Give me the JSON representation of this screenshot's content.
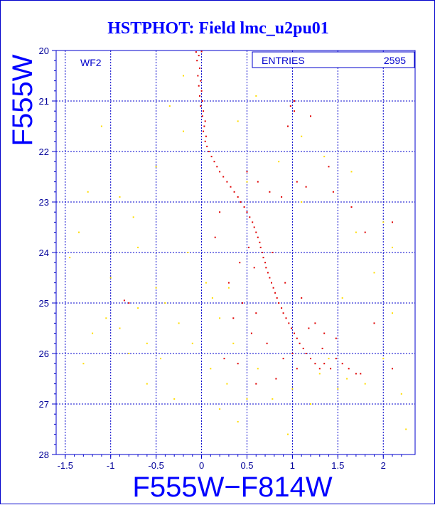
{
  "colors": {
    "frame": "#0000cc",
    "grid": "#0000cc",
    "text": "#0000ff",
    "series_red": "#e00000",
    "series_yellow": "#ffdd00"
  },
  "chart_data": {
    "type": "scatter",
    "title": "HSTPHOT: Field lmc_u2pu01",
    "xlabel": "F555W−F814W",
    "ylabel": "F555W",
    "panel_label": "WF2",
    "stats_box": {
      "label": "ENTRIES",
      "value": "2595"
    },
    "xlim": [
      -1.6,
      2.35
    ],
    "ylim": [
      28,
      20
    ],
    "y_inverted": true,
    "x_ticks": [
      -1.5,
      -1,
      -0.5,
      0,
      0.5,
      1,
      1.5,
      2
    ],
    "x_tick_labels": [
      "-1.5",
      "-1",
      "-0.5",
      "0",
      "0.5",
      "1",
      "1.5",
      "2"
    ],
    "y_ticks": [
      20,
      21,
      22,
      23,
      24,
      25,
      26,
      27,
      28
    ],
    "y_tick_labels": [
      "20",
      "21",
      "22",
      "23",
      "24",
      "25",
      "26",
      "27",
      "28"
    ],
    "grid": true,
    "series": [
      {
        "color": "#e00000",
        "points": [
          [
            -0.06,
            20.03
          ],
          [
            0.0,
            20.02
          ],
          [
            -0.03,
            20.1
          ],
          [
            -0.05,
            20.2
          ],
          [
            -0.02,
            20.35
          ],
          [
            -0.04,
            20.5
          ],
          [
            -0.01,
            20.6
          ],
          [
            -0.03,
            20.7
          ],
          [
            0.0,
            20.8
          ],
          [
            -0.02,
            20.9
          ],
          [
            0.01,
            21.0
          ],
          [
            -0.01,
            21.1
          ],
          [
            0.02,
            21.2
          ],
          [
            0.01,
            21.3
          ],
          [
            0.04,
            21.4
          ],
          [
            0.03,
            21.5
          ],
          [
            0.02,
            21.6
          ],
          [
            0.05,
            21.7
          ],
          [
            0.04,
            21.8
          ],
          [
            0.06,
            21.9
          ],
          [
            0.08,
            22.0
          ],
          [
            0.11,
            22.1
          ],
          [
            0.14,
            22.2
          ],
          [
            0.17,
            22.3
          ],
          [
            0.2,
            22.4
          ],
          [
            0.24,
            22.5
          ],
          [
            0.28,
            22.6
          ],
          [
            0.32,
            22.7
          ],
          [
            0.36,
            22.8
          ],
          [
            0.4,
            22.9
          ],
          [
            0.43,
            23.0
          ],
          [
            0.47,
            23.1
          ],
          [
            0.5,
            23.2
          ],
          [
            0.53,
            23.3
          ],
          [
            0.56,
            23.4
          ],
          [
            0.58,
            23.5
          ],
          [
            0.6,
            23.6
          ],
          [
            0.62,
            23.7
          ],
          [
            0.64,
            23.8
          ],
          [
            0.65,
            23.9
          ],
          [
            0.67,
            24.0
          ],
          [
            0.68,
            24.1
          ],
          [
            0.7,
            24.2
          ],
          [
            0.71,
            24.3
          ],
          [
            0.73,
            24.4
          ],
          [
            0.75,
            24.5
          ],
          [
            0.77,
            24.6
          ],
          [
            0.79,
            24.7
          ],
          [
            0.81,
            24.8
          ],
          [
            0.83,
            24.9
          ],
          [
            0.85,
            25.0
          ],
          [
            0.88,
            25.1
          ],
          [
            0.9,
            25.2
          ],
          [
            0.93,
            25.3
          ],
          [
            0.96,
            25.4
          ],
          [
            0.99,
            25.5
          ],
          [
            1.02,
            25.6
          ],
          [
            1.05,
            25.7
          ],
          [
            1.08,
            25.8
          ],
          [
            1.12,
            25.9
          ],
          [
            1.15,
            26.0
          ],
          [
            1.2,
            26.1
          ],
          [
            1.25,
            26.2
          ],
          [
            1.3,
            26.3
          ],
          [
            1.35,
            26.2
          ],
          [
            1.42,
            26.3
          ],
          [
            1.48,
            26.1
          ],
          [
            1.55,
            26.2
          ],
          [
            1.62,
            26.3
          ],
          [
            1.7,
            26.4
          ],
          [
            0.98,
            21.1
          ],
          [
            1.02,
            21.0
          ],
          [
            1.02,
            21.2
          ],
          [
            0.95,
            21.5
          ],
          [
            1.2,
            21.3
          ],
          [
            1.4,
            22.3
          ],
          [
            1.65,
            23.1
          ],
          [
            2.1,
            23.4
          ],
          [
            0.5,
            22.4
          ],
          [
            0.62,
            22.6
          ],
          [
            0.75,
            22.8
          ],
          [
            0.88,
            22.9
          ],
          [
            1.05,
            22.6
          ],
          [
            1.15,
            22.7
          ],
          [
            0.3,
            24.6
          ],
          [
            0.35,
            25.3
          ],
          [
            0.4,
            26.2
          ],
          [
            0.6,
            26.6
          ],
          [
            0.25,
            26.1
          ],
          [
            -0.85,
            24.95
          ],
          [
            -0.8,
            25.0
          ],
          [
            1.33,
            25.9
          ],
          [
            1.48,
            25.7
          ],
          [
            1.75,
            26.4
          ],
          [
            2.1,
            26.3
          ],
          [
            1.9,
            25.4
          ],
          [
            1.45,
            22.8
          ],
          [
            1.8,
            23.6
          ],
          [
            0.82,
            26.5
          ],
          [
            1.0,
            26.0
          ],
          [
            0.55,
            25.6
          ],
          [
            0.45,
            25.0
          ],
          [
            0.58,
            24.3
          ],
          [
            0.92,
            24.6
          ],
          [
            1.1,
            24.9
          ],
          [
            1.25,
            25.4
          ],
          [
            0.2,
            23.2
          ],
          [
            0.15,
            23.7
          ],
          [
            1.3,
            20.05
          ],
          [
            0.78,
            24.0
          ],
          [
            0.6,
            25.2
          ],
          [
            0.72,
            25.8
          ],
          [
            1.05,
            26.3
          ],
          [
            0.9,
            26.1
          ],
          [
            1.18,
            25.5
          ],
          [
            1.35,
            25.6
          ],
          [
            0.52,
            23.9
          ],
          [
            0.42,
            24.2
          ]
        ]
      },
      {
        "color": "#ffdd00",
        "points": [
          [
            -1.1,
            21.5
          ],
          [
            -1.3,
            26.2
          ],
          [
            -1.0,
            24.5
          ],
          [
            -0.9,
            22.9
          ],
          [
            -0.7,
            23.9
          ],
          [
            -0.5,
            22.3
          ],
          [
            -0.35,
            21.1
          ],
          [
            -0.2,
            21.6
          ],
          [
            -1.25,
            22.8
          ],
          [
            -1.45,
            24.1
          ],
          [
            -1.2,
            25.6
          ],
          [
            -0.6,
            26.6
          ],
          [
            -0.3,
            26.9
          ],
          [
            -0.1,
            25.8
          ],
          [
            0.1,
            26.3
          ],
          [
            0.2,
            25.3
          ],
          [
            0.3,
            24.7
          ],
          [
            0.4,
            27.35
          ],
          [
            0.2,
            27.1
          ],
          [
            0.5,
            26.9
          ],
          [
            0.95,
            27.6
          ],
          [
            1.2,
            27.0
          ],
          [
            1.5,
            26.7
          ],
          [
            1.8,
            26.6
          ],
          [
            2.0,
            26.1
          ],
          [
            2.2,
            26.8
          ],
          [
            2.1,
            25.2
          ],
          [
            1.9,
            24.4
          ],
          [
            1.7,
            23.6
          ],
          [
            2.0,
            23.4
          ],
          [
            2.1,
            23.9
          ],
          [
            1.65,
            22.4
          ],
          [
            1.35,
            22.1
          ],
          [
            1.1,
            21.7
          ],
          [
            0.6,
            20.9
          ],
          [
            0.4,
            21.4
          ],
          [
            0.5,
            22.6
          ],
          [
            -0.7,
            25.1
          ],
          [
            -0.9,
            25.5
          ],
          [
            -0.4,
            25.0
          ],
          [
            -1.05,
            25.3
          ],
          [
            -0.8,
            26.0
          ],
          [
            -0.15,
            24.0
          ],
          [
            0.05,
            24.6
          ],
          [
            0.35,
            25.8
          ],
          [
            0.62,
            26.3
          ],
          [
            0.78,
            26.9
          ],
          [
            1.3,
            26.4
          ],
          [
            -0.2,
            20.5
          ],
          [
            -0.5,
            24.7
          ],
          [
            -0.75,
            23.3
          ],
          [
            -1.35,
            23.6
          ],
          [
            2.25,
            27.5
          ],
          [
            1.55,
            24.9
          ],
          [
            1.1,
            23.0
          ],
          [
            0.85,
            22.2
          ],
          [
            -0.45,
            26.1
          ],
          [
            -0.25,
            25.4
          ],
          [
            0.12,
            24.9
          ],
          [
            0.28,
            26.6
          ],
          [
            1.0,
            26.7
          ],
          [
            1.4,
            26.1
          ],
          [
            1.6,
            26.5
          ],
          [
            -0.6,
            25.8
          ]
        ]
      }
    ]
  }
}
